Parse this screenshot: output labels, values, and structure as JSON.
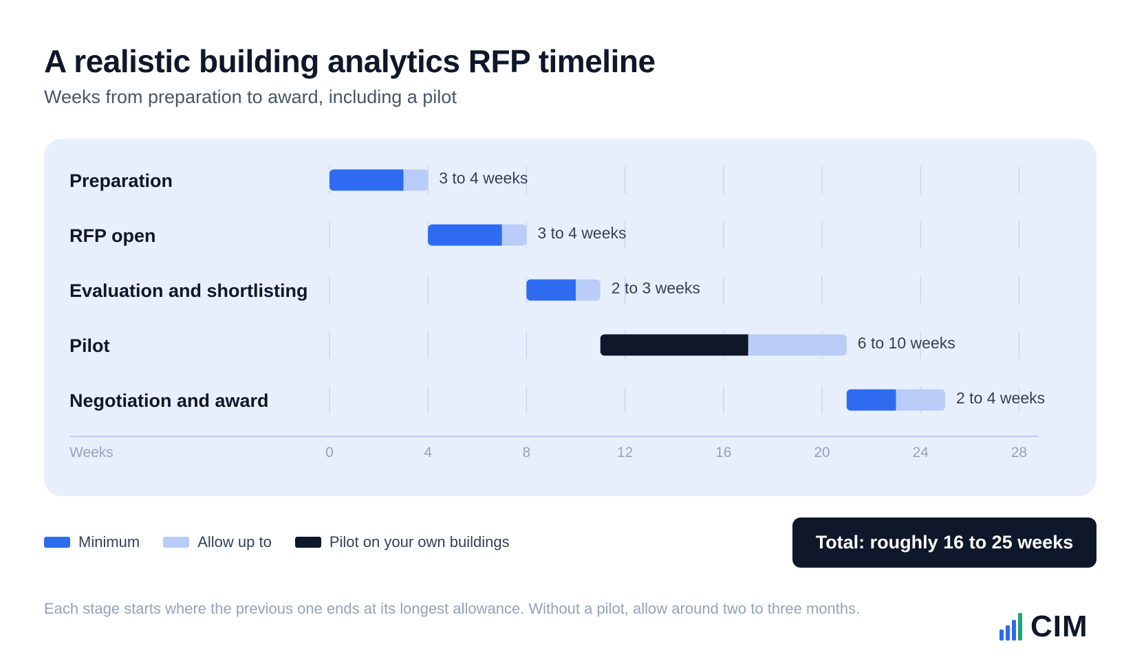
{
  "header": {
    "title": "A realistic building analytics RFP timeline",
    "subtitle": "Weeks from preparation to award, including a pilot"
  },
  "chart_data": {
    "type": "bar",
    "orientation": "horizontal-stacked-gantt",
    "xlabel": "Weeks",
    "xlim": [
      0,
      28
    ],
    "xticks": [
      0,
      4,
      8,
      12,
      16,
      20,
      24,
      28
    ],
    "grid": true,
    "rows": [
      {
        "label": "Preparation",
        "start": 0,
        "min_weeks": 3,
        "max_weeks": 4,
        "value_label": "3 to 4 weeks",
        "series": "Minimum"
      },
      {
        "label": "RFP open",
        "start": 4,
        "min_weeks": 3,
        "max_weeks": 4,
        "value_label": "3 to 4 weeks",
        "series": "Minimum"
      },
      {
        "label": "Evaluation and shortlisting",
        "start": 8,
        "min_weeks": 2,
        "max_weeks": 3,
        "value_label": "2 to 3 weeks",
        "series": "Minimum"
      },
      {
        "label": "Pilot",
        "start": 11,
        "min_weeks": 6,
        "max_weeks": 10,
        "value_label": "6 to 10 weeks",
        "series": "Pilot on your own buildings"
      },
      {
        "label": "Negotiation and award",
        "start": 21,
        "min_weeks": 2,
        "max_weeks": 4,
        "value_label": "2 to 4 weeks",
        "series": "Minimum"
      }
    ],
    "series": [
      {
        "name": "Minimum",
        "color": "#2f6bf1"
      },
      {
        "name": "Allow up to",
        "color": "#b9cdf8"
      },
      {
        "name": "Pilot on your own buildings",
        "color": "#0f172a"
      }
    ],
    "legend": "bottom-left"
  },
  "colors": {
    "minimum": "#2f6bf1",
    "allowance": "#b9cdf8",
    "pilot": "#0f172a",
    "panel": "#e8effc",
    "grid": "#c8d6ee"
  },
  "legend": {
    "minimum": "Minimum",
    "allowance": "Allow up to",
    "pilot": "Pilot on your own buildings"
  },
  "summary": {
    "total": "Total: roughly 16 to 25 weeks"
  },
  "footnote": "Each stage starts where the previous one ends at its longest allowance. Without a pilot, allow around two to three months.",
  "logo": {
    "wordmark": "CIM",
    "icon": "bar-chart-logo-icon"
  }
}
